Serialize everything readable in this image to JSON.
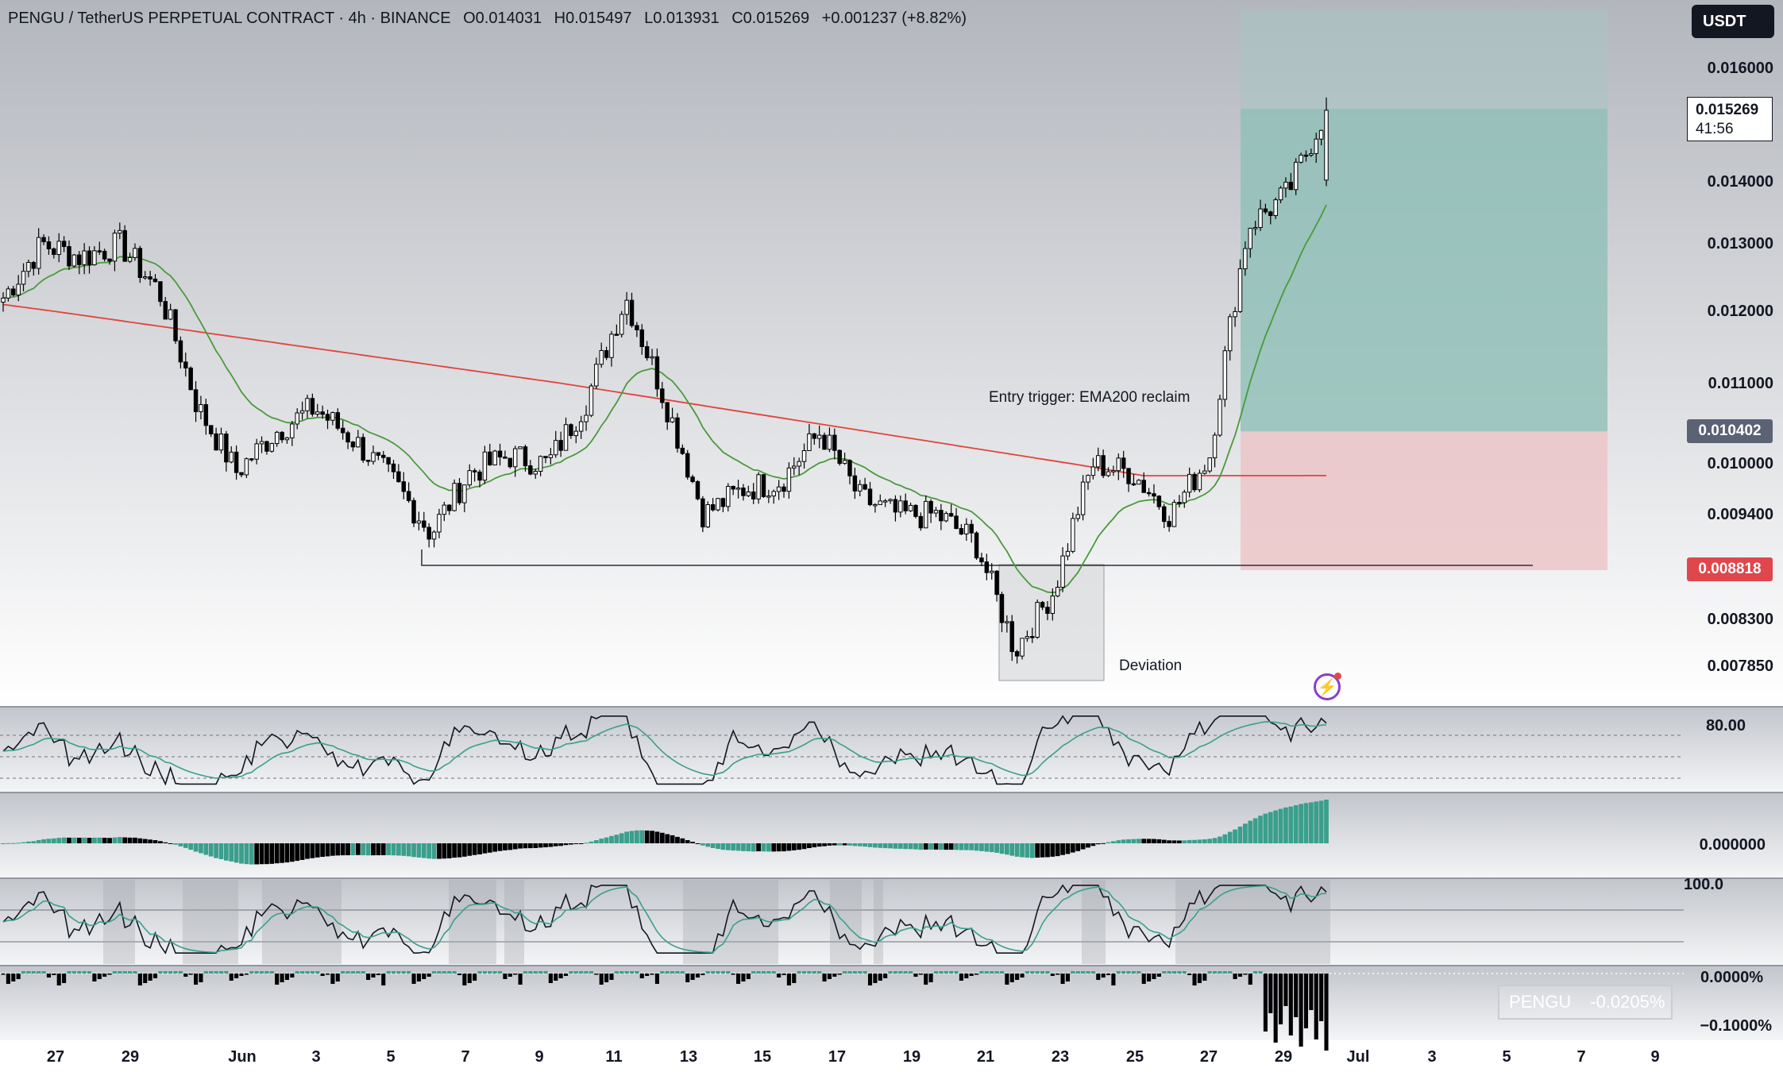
{
  "header": {
    "symbol": "PENGU / TetherUS PERPETUAL CONTRACT · 4h · BINANCE",
    "open": "O0.014031",
    "high": "H0.015497",
    "low": "L0.013931",
    "close": "C0.015269",
    "change": "+0.001237 (+8.82%)"
  },
  "currency_button": "USDT",
  "price_axis": [
    "0.016000",
    "0.014000",
    "0.013000",
    "0.012000",
    "0.011000",
    "0.010000",
    "0.009400",
    "0.008300",
    "0.007850"
  ],
  "last_price": {
    "value": "0.015269",
    "countdown": "41:56"
  },
  "entry_tag": "0.010402",
  "stop_tag": "0.008818",
  "annotations": {
    "entry": "Entry trigger: EMA200 reclaim",
    "deviation": "Deviation"
  },
  "dates": [
    "27",
    "29",
    "Jun",
    "3",
    "5",
    "7",
    "9",
    "11",
    "13",
    "15",
    "17",
    "19",
    "21",
    "23",
    "25",
    "27",
    "29",
    "Jul",
    "3",
    "5",
    "7",
    "9"
  ],
  "indicators": {
    "rsi_level": "80.00",
    "macd_level": "0.000000",
    "stoch_level": "100.0",
    "funding_zero": "0.0000%",
    "funding_low": "−0.1000%"
  },
  "legend": {
    "symbol": "PENGU",
    "value": "-0.0205%"
  },
  "colors": {
    "ema200": "#e2443d",
    "ema_fast": "#4a9a3e",
    "profit_zone": "#8fbfb6",
    "loss_zone": "#ecc3c6",
    "teal": "#3a9f8c",
    "bullish_body": "#ffffff",
    "bearish_body": "#000000"
  },
  "chart_data": {
    "type": "candlestick",
    "timeframe": "4h",
    "y_range": [
      0.00755,
      0.01655
    ],
    "key_levels": {
      "entry": 0.010402,
      "stop": 0.008818,
      "support_line": 0.0088,
      "last_close": 0.015269
    },
    "series_anchor_closes": [
      0.0122,
      0.013,
      0.0128,
      0.013,
      0.0123,
      0.0107,
      0.0099,
      0.0104,
      0.0107,
      0.0103,
      0.0098,
      0.0092,
      0.0099,
      0.0101,
      0.01,
      0.0108,
      0.0122,
      0.0108,
      0.0094,
      0.0097,
      0.0098,
      0.0104,
      0.0096,
      0.0094,
      0.0094,
      0.0091,
      0.008,
      0.0086,
      0.01,
      0.0099,
      0.0094,
      0.0101,
      0.0133,
      0.0138,
      0.0153
    ]
  }
}
